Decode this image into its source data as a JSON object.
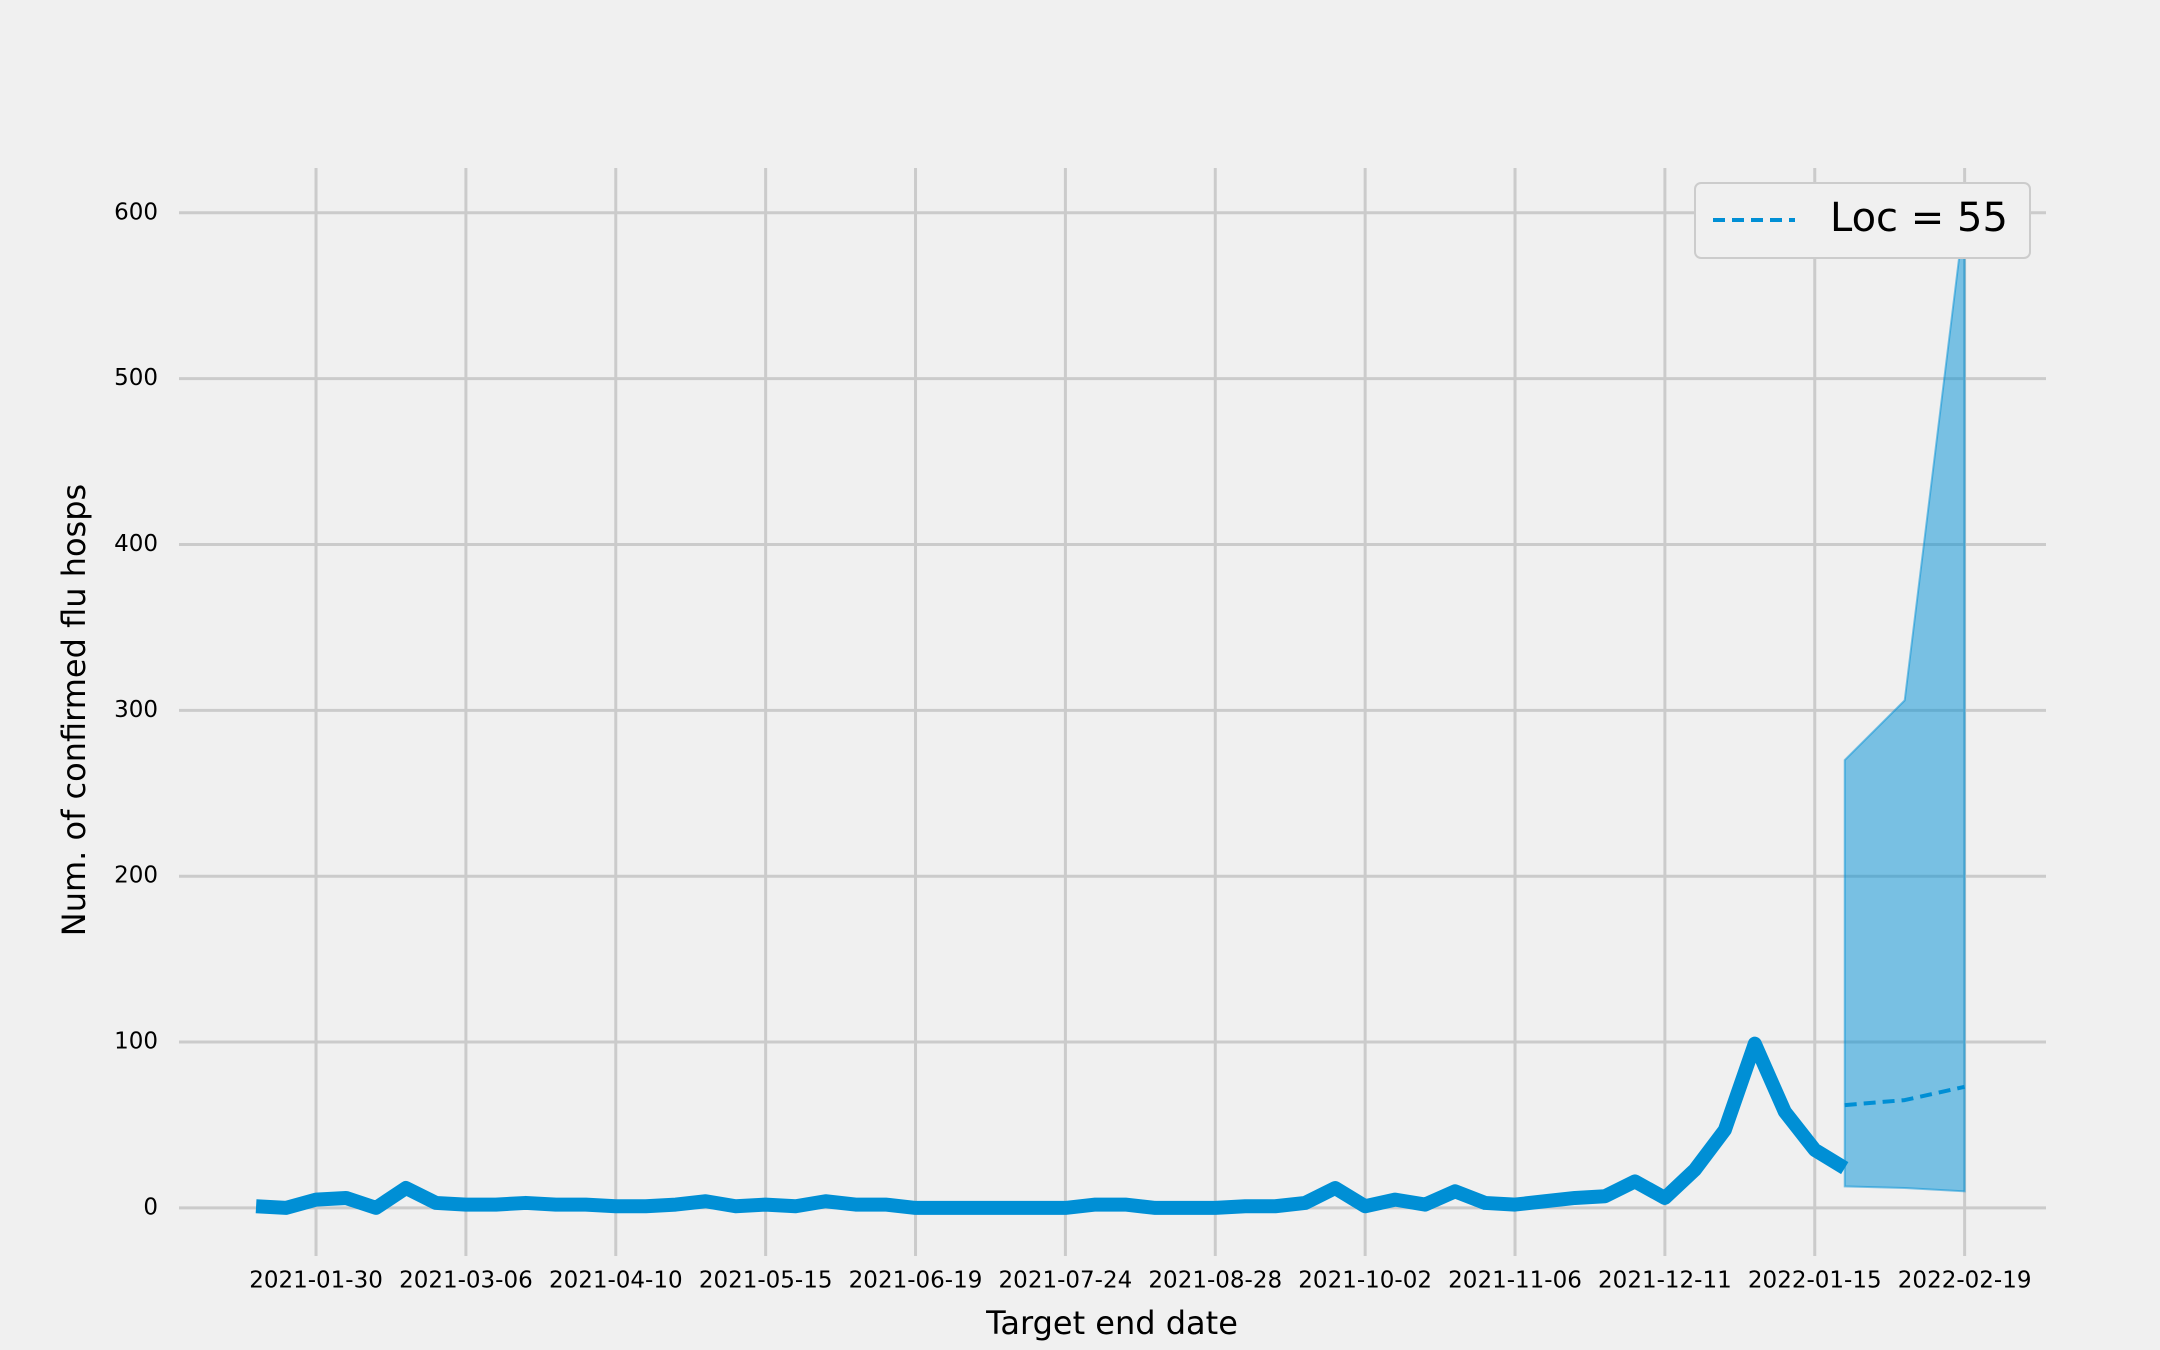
{
  "chart_data": {
    "type": "line",
    "x_label": "Target end date",
    "y_label": "Num. of confirmed flu hosps",
    "series": [
      {
        "color": "#008fd5",
        "style": "solid",
        "x": [
          "2021-01-16",
          "2021-01-23",
          "2021-01-30",
          "2021-02-06",
          "2021-02-13",
          "2021-02-20",
          "2021-02-27",
          "2021-03-06",
          "2021-03-13",
          "2021-03-20",
          "2021-03-27",
          "2021-04-03",
          "2021-04-10",
          "2021-04-17",
          "2021-04-24",
          "2021-05-01",
          "2021-05-08",
          "2021-05-15",
          "2021-05-22",
          "2021-05-29",
          "2021-06-05",
          "2021-06-12",
          "2021-06-19",
          "2021-06-26",
          "2021-07-03",
          "2021-07-10",
          "2021-07-17",
          "2021-07-24",
          "2021-07-31",
          "2021-08-07",
          "2021-08-14",
          "2021-08-21",
          "2021-08-28",
          "2021-09-04",
          "2021-09-11",
          "2021-09-18",
          "2021-09-25",
          "2021-10-02",
          "2021-10-09",
          "2021-10-16",
          "2021-10-23",
          "2021-10-30",
          "2021-11-06",
          "2021-11-13",
          "2021-11-20",
          "2021-11-27",
          "2021-12-04",
          "2021-12-11",
          "2021-12-18",
          "2021-12-25",
          "2022-01-01",
          "2022-01-08",
          "2022-01-15",
          "2022-01-22"
        ],
        "values": [
          1,
          0,
          5,
          6,
          0,
          12,
          3,
          2,
          2,
          3,
          2,
          2,
          1,
          1,
          2,
          4,
          1,
          2,
          1,
          4,
          2,
          2,
          0,
          0,
          0,
          0,
          0,
          0,
          2,
          2,
          0,
          0,
          0,
          1,
          1,
          3,
          12,
          1,
          5,
          2,
          10,
          3,
          2,
          4,
          6,
          7,
          16,
          6,
          23,
          47,
          99,
          58,
          35,
          24
        ]
      },
      {
        "name": "Loc = 55",
        "color": "#008fd5",
        "style": "dashed",
        "x": [
          "2022-01-22",
          "2022-02-05",
          "2022-02-19"
        ],
        "values": [
          62,
          65,
          73
        ],
        "lower": [
          13,
          12,
          10
        ],
        "upper": [
          270,
          306,
          600
        ]
      }
    ],
    "xlim": [
      "2020-12-29",
      "2022-03-10"
    ],
    "xticks": [
      "2021-01-30",
      "2021-03-06",
      "2021-04-10",
      "2021-05-15",
      "2021-06-19",
      "2021-07-24",
      "2021-08-28",
      "2021-10-02",
      "2021-11-06",
      "2021-12-11",
      "2022-01-15",
      "2022-02-19"
    ],
    "ylim": [
      -29,
      627
    ],
    "yticks": [
      0,
      100,
      200,
      300,
      400,
      500,
      600
    ],
    "grid": true,
    "legend": "upper right"
  }
}
